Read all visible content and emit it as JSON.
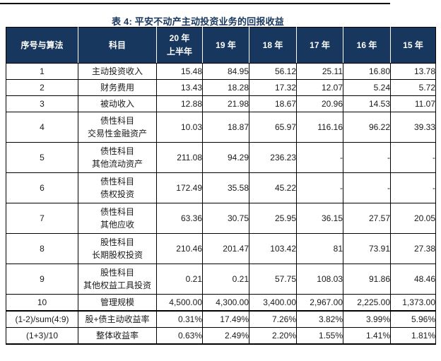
{
  "title": "表 4: 平安不动产主动投资业务的回报收益",
  "colors": {
    "header_bg": "#17375E",
    "header_text": "#ffffff",
    "title_text": "#17375E",
    "border": "#000000"
  },
  "table": {
    "headers": [
      "序号与算法",
      "科目",
      "20 年\n上半年",
      "19 年",
      "18 年",
      "17 年",
      "16 年",
      "15 年"
    ],
    "rows": [
      {
        "id": "1",
        "subject": "主动投资收入",
        "values": [
          "15.48",
          "84.95",
          "56.12",
          "25.11",
          "16.80",
          "13.78"
        ]
      },
      {
        "id": "2",
        "subject": "财务费用",
        "values": [
          "13.43",
          "18.28",
          "17.32",
          "12.07",
          "5.24",
          "5.72"
        ]
      },
      {
        "id": "3",
        "subject": "被动收入",
        "values": [
          "12.88",
          "21.98",
          "18.67",
          "20.96",
          "14.53",
          "11.07"
        ]
      },
      {
        "id": "4",
        "subject": "债性科目\n交易性金融资产",
        "values": [
          "10.03",
          "18.87",
          "65.97",
          "116.16",
          "96.22",
          "39.33"
        ]
      },
      {
        "id": "5",
        "subject": "债性科目\n其他流动资产",
        "values": [
          "211.08",
          "94.29",
          "236.23",
          "-",
          "-",
          "-"
        ]
      },
      {
        "id": "6",
        "subject": "债性科目\n债权投资",
        "values": [
          "172.49",
          "35.58",
          "45.22",
          "-",
          "-",
          "-"
        ]
      },
      {
        "id": "7",
        "subject": "债性科目\n其他应收",
        "values": [
          "63.36",
          "30.75",
          "25.95",
          "36.15",
          "27.57",
          "20.05"
        ]
      },
      {
        "id": "8",
        "subject": "股性科目\n长期股权投资",
        "values": [
          "210.46",
          "201.47",
          "103.42",
          "81",
          "73.91",
          "27.38"
        ]
      },
      {
        "id": "9",
        "subject": "股性科目\n其他权益工具投资",
        "values": [
          "0.21",
          "0.21",
          "57.75",
          "108.03",
          "91.86",
          "48.46"
        ]
      },
      {
        "id": "10",
        "subject": "管理规模",
        "values": [
          "4,500.00",
          "4,300.00",
          "3,400.00",
          "2,967.00",
          "2,225.00",
          "1,373.00"
        ]
      },
      {
        "id": "(1-2)/sum(4:9)",
        "subject": "股+债主动收益率",
        "values": [
          "0.31%",
          "17.49%",
          "7.26%",
          "3.82%",
          "3.99%",
          "5.96%"
        ]
      },
      {
        "id": "(1+3)/10",
        "subject": "整体收益率",
        "values": [
          "0.63%",
          "2.49%",
          "2.20%",
          "1.55%",
          "1.41%",
          "1.81%"
        ]
      }
    ]
  }
}
